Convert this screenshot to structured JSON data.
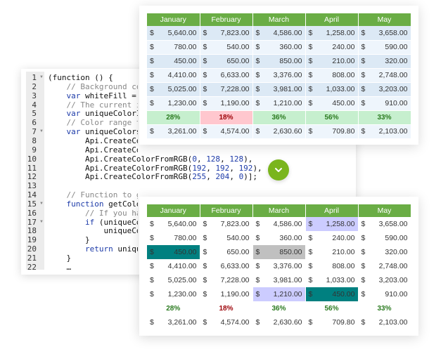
{
  "code": {
    "lines": [
      {
        "n": "1",
        "fold": true,
        "parts": [
          [
            "",
            "(function () {"
          ]
        ]
      },
      {
        "n": "2",
        "parts": [
          [
            "cm",
            "    // Background color"
          ]
        ]
      },
      {
        "n": "3",
        "parts": [
          [
            "kw",
            "    var"
          ],
          [
            "",
            " whiteFill = Api"
          ]
        ]
      },
      {
        "n": "4",
        "parts": [
          [
            "cm",
            "    // The current inde"
          ]
        ]
      },
      {
        "n": "5",
        "parts": [
          [
            "kw",
            "    var"
          ],
          [
            "",
            " uniqueColorInde"
          ]
        ]
      },
      {
        "n": "6",
        "parts": [
          [
            "cm",
            "    // Color range to h"
          ]
        ]
      },
      {
        "n": "7",
        "fold": true,
        "parts": [
          [
            "kw",
            "    var"
          ],
          [
            "",
            " uniqueColors = "
          ]
        ]
      },
      {
        "n": "8",
        "parts": [
          [
            "",
            "        Api.CreateColor"
          ]
        ]
      },
      {
        "n": "9",
        "parts": [
          [
            "",
            "        Api.CreateColorFromRGB("
          ],
          [
            "num",
            "0"
          ],
          [
            "",
            ", "
          ],
          [
            "num",
            "255"
          ],
          [
            "",
            ", "
          ],
          [
            "num",
            "0"
          ],
          [
            "",
            "),"
          ]
        ]
      },
      {
        "n": "10",
        "parts": [
          [
            "",
            "        Api.CreateColorFromRGB("
          ],
          [
            "num",
            "0"
          ],
          [
            "",
            ", "
          ],
          [
            "num",
            "128"
          ],
          [
            "",
            ", "
          ],
          [
            "num",
            "128"
          ],
          [
            "",
            "),"
          ]
        ]
      },
      {
        "n": "11",
        "parts": [
          [
            "",
            "        Api.CreateColorFromRGB("
          ],
          [
            "num",
            "192"
          ],
          [
            "",
            ", "
          ],
          [
            "num",
            "192"
          ],
          [
            "",
            ", "
          ],
          [
            "num",
            "192"
          ],
          [
            "",
            "),"
          ]
        ]
      },
      {
        "n": "12",
        "parts": [
          [
            "",
            "        Api.CreateColorFromRGB("
          ],
          [
            "num",
            "255"
          ],
          [
            "",
            ", "
          ],
          [
            "num",
            "204"
          ],
          [
            "",
            ", "
          ],
          [
            "num",
            "0"
          ],
          [
            "",
            ")];"
          ]
        ]
      },
      {
        "n": "13",
        "parts": []
      },
      {
        "n": "14",
        "parts": [
          [
            "cm",
            "    // Function to get color for duplicates"
          ]
        ]
      },
      {
        "n": "15",
        "fold": true,
        "parts": [
          [
            "kw",
            "    function"
          ],
          [
            "",
            " getColor()"
          ]
        ]
      },
      {
        "n": "16",
        "parts": [
          [
            "cm",
            "        // If you have "
          ]
        ]
      },
      {
        "n": "17",
        "fold": true,
        "parts": [
          [
            "kw",
            "        if"
          ],
          [
            "",
            " (uniqueColor"
          ]
        ]
      },
      {
        "n": "18",
        "parts": [
          [
            "",
            "            uniqueColor"
          ]
        ]
      },
      {
        "n": "19",
        "parts": [
          [
            "",
            "        }"
          ]
        ]
      },
      {
        "n": "20",
        "parts": [
          [
            "kw",
            "        return"
          ],
          [
            "",
            " uniqueCo"
          ]
        ]
      },
      {
        "n": "21",
        "parts": [
          [
            "",
            "    }"
          ]
        ]
      },
      {
        "n": "22",
        "parts": [
          [
            "",
            "    …"
          ]
        ]
      }
    ]
  },
  "table": {
    "headers": [
      "January",
      "February",
      "March",
      "April",
      "May"
    ],
    "currency": "$",
    "rows": [
      [
        "5,640.00",
        "7,823.00",
        "4,586.00",
        "1,258.00",
        "3,658.00"
      ],
      [
        "780.00",
        "540.00",
        "360.00",
        "240.00",
        "590.00"
      ],
      [
        "450.00",
        "650.00",
        "850.00",
        "210.00",
        "320.00"
      ],
      [
        "4,410.00",
        "6,633.00",
        "3,376.00",
        "808.00",
        "2,748.00"
      ],
      [
        "5,025.00",
        "7,228.00",
        "3,981.00",
        "1,033.00",
        "3,203.00"
      ],
      [
        "1,230.00",
        "1,190.00",
        "1,210.00",
        "450.00",
        "910.00"
      ]
    ],
    "percents": [
      {
        "v": "28%",
        "s": "g"
      },
      {
        "v": "18%",
        "s": "r"
      },
      {
        "v": "36%",
        "s": "g"
      },
      {
        "v": "56%",
        "s": "g"
      },
      {
        "v": "33%",
        "s": "g"
      }
    ],
    "totals": [
      "3,261.00",
      "4,574.00",
      "2,630.60",
      "709.80",
      "2,103.00"
    ]
  },
  "highlights": [
    {
      "row": 0,
      "col": 3,
      "color": "#ccccff"
    },
    {
      "row": 2,
      "col": 0,
      "color": "#008080"
    },
    {
      "row": 2,
      "col": 2,
      "color": "#c0c0c0"
    },
    {
      "row": 5,
      "col": 2,
      "color": "#ccccff"
    },
    {
      "row": 5,
      "col": 3,
      "color": "#008080"
    }
  ],
  "colors": {
    "header": "#6aad45",
    "button": "#7ab51d"
  },
  "icons": {
    "toggle": "chevron-down-icon"
  }
}
